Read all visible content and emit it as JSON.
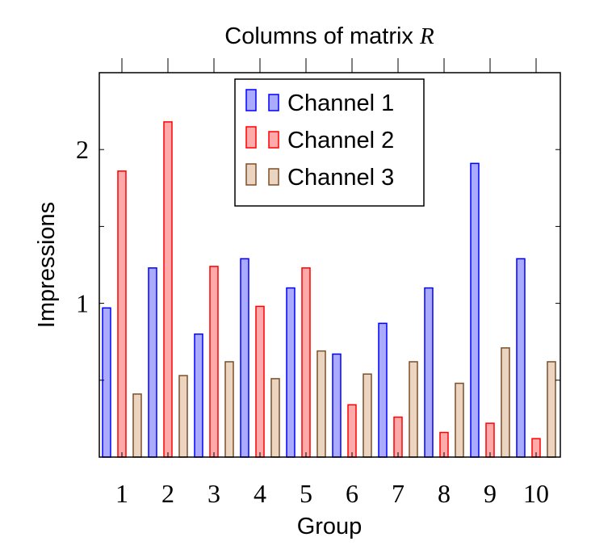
{
  "chart_data": {
    "type": "bar",
    "title": "Columns of matrix",
    "title_var": "R",
    "xlabel": "Group",
    "ylabel": "Impressions",
    "categories": [
      "1",
      "2",
      "3",
      "4",
      "5",
      "6",
      "7",
      "8",
      "9",
      "10"
    ],
    "yticks": [
      "1",
      "2"
    ],
    "ylim": [
      0,
      2.5
    ],
    "grid": false,
    "legend_position": "top-center",
    "series": [
      {
        "name": "Channel 1",
        "color": "#0000ff",
        "fill": "#aaaaff",
        "values": [
          0.97,
          1.23,
          0.8,
          1.29,
          1.1,
          0.67,
          0.87,
          1.1,
          1.91,
          1.29
        ]
      },
      {
        "name": "Channel 2",
        "color": "#ff0000",
        "fill": "#ffaaaa",
        "values": [
          1.86,
          2.18,
          1.24,
          0.98,
          1.23,
          0.34,
          0.26,
          0.16,
          0.22,
          0.12
        ]
      },
      {
        "name": "Channel 3",
        "color": "#7b4f2a",
        "fill": "#ecd5c0",
        "values": [
          0.41,
          0.53,
          0.62,
          0.51,
          0.69,
          0.54,
          0.62,
          0.48,
          0.71,
          0.62
        ]
      }
    ]
  }
}
